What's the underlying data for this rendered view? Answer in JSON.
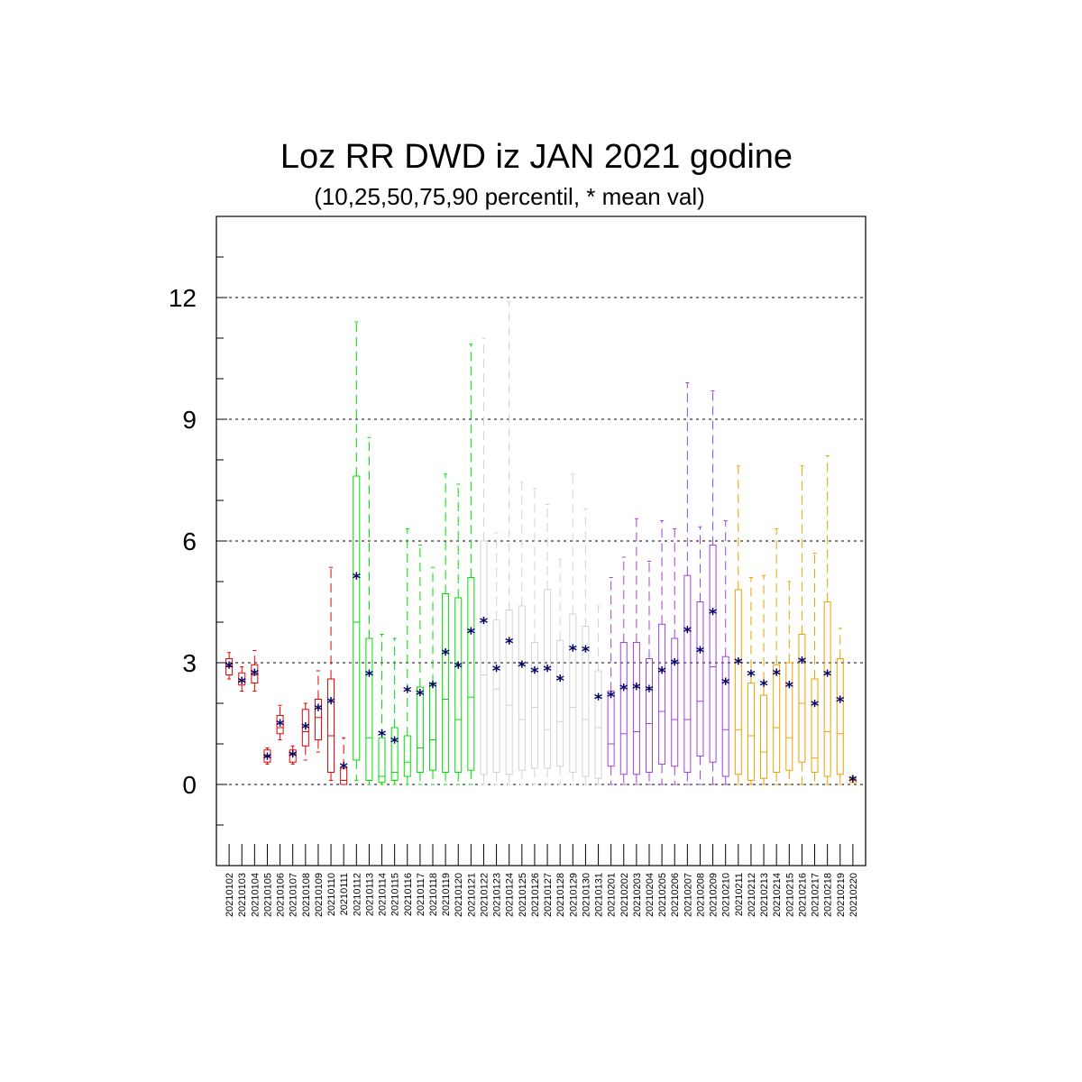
{
  "chart_data": {
    "type": "box",
    "title": "Loz RR DWD iz JAN 2021 godine",
    "subtitle": "(10,25,50,75,90 percentil, * mean val)",
    "xlabel": "",
    "ylabel": "",
    "ylim": [
      -2,
      14
    ],
    "yticks": [
      0,
      3,
      6,
      9,
      12
    ],
    "grid": "horizontal dashed at major ticks",
    "legend": "none",
    "mean_marker_color": "#000066",
    "categories": [
      "20210102",
      "20210103",
      "20210104",
      "20210105",
      "20210106",
      "20210107",
      "20210108",
      "20210109",
      "20210110",
      "20210111",
      "20210112",
      "20210113",
      "20210114",
      "20210115",
      "20210116",
      "20210117",
      "20210118",
      "20210119",
      "20210120",
      "20210121",
      "20210122",
      "20210123",
      "20210124",
      "20210125",
      "20210126",
      "20210127",
      "20210128",
      "20210129",
      "20210130",
      "20210131",
      "20210201",
      "20210202",
      "20210203",
      "20210204",
      "20210205",
      "20210206",
      "20210207",
      "20210208",
      "20210209",
      "20210210",
      "20210211",
      "20210212",
      "20210213",
      "20210214",
      "20210215",
      "20210216",
      "20210217",
      "20210218",
      "20210219",
      "20210220"
    ],
    "colors": [
      "#e60000",
      "#e60000",
      "#e60000",
      "#e60000",
      "#e60000",
      "#e60000",
      "#e60000",
      "#e60000",
      "#e60000",
      "#e60000",
      "#00dd00",
      "#00dd00",
      "#00dd00",
      "#00dd00",
      "#00dd00",
      "#00dd00",
      "#00dd00",
      "#00dd00",
      "#00dd00",
      "#00dd00",
      "#d3d3d3",
      "#d3d3d3",
      "#d3d3d3",
      "#d3d3d3",
      "#d3d3d3",
      "#d3d3d3",
      "#d3d3d3",
      "#d3d3d3",
      "#d3d3d3",
      "#d3d3d3",
      "#a040e0",
      "#a040e0",
      "#a040e0",
      "#a040e0",
      "#a040e0",
      "#a040e0",
      "#a040e0",
      "#a040e0",
      "#a040e0",
      "#a040e0",
      "#f0a000",
      "#f0a000",
      "#f0a000",
      "#f0a000",
      "#f0a000",
      "#f0a000",
      "#f0a000",
      "#f0a000",
      "#f0a000",
      "#f0a000"
    ],
    "p10": [
      2.6,
      2.3,
      2.3,
      0.5,
      1.1,
      0.5,
      0.6,
      0.8,
      0.1,
      0.0,
      0.1,
      0.0,
      0.0,
      0.0,
      0.0,
      0.0,
      0.0,
      0.0,
      0.0,
      0.0,
      0.0,
      0.0,
      0.0,
      0.0,
      0.0,
      0.0,
      0.0,
      0.0,
      0.0,
      0.0,
      0.0,
      0.0,
      0.0,
      0.0,
      0.0,
      0.0,
      0.0,
      0.0,
      0.0,
      0.0,
      0.0,
      0.0,
      0.0,
      0.0,
      0.0,
      0.0,
      0.0,
      0.0,
      0.0,
      0.05
    ],
    "p25": [
      2.7,
      2.45,
      2.5,
      0.55,
      1.25,
      0.55,
      0.95,
      1.1,
      0.3,
      0.0,
      0.6,
      0.1,
      0.05,
      0.1,
      0.2,
      0.3,
      0.35,
      0.3,
      0.3,
      0.35,
      0.25,
      0.3,
      0.25,
      0.35,
      0.4,
      0.4,
      0.45,
      0.3,
      0.2,
      0.15,
      0.45,
      0.25,
      0.25,
      0.3,
      0.5,
      0.45,
      0.3,
      0.7,
      0.55,
      0.2,
      0.25,
      0.1,
      0.15,
      0.3,
      0.35,
      0.55,
      0.3,
      0.2,
      0.25,
      0.05
    ],
    "p50": [
      2.9,
      2.55,
      2.7,
      0.7,
      1.4,
      0.75,
      1.3,
      1.65,
      1.2,
      0.1,
      4.0,
      1.15,
      0.2,
      0.3,
      0.55,
      0.9,
      1.1,
      2.1,
      1.6,
      2.15,
      2.7,
      2.35,
      1.95,
      1.6,
      1.9,
      1.35,
      1.55,
      1.9,
      1.6,
      1.4,
      1.0,
      1.25,
      1.3,
      1.5,
      1.8,
      1.6,
      1.6,
      2.05,
      2.9,
      1.35,
      1.35,
      1.2,
      0.8,
      1.4,
      1.15,
      2.0,
      0.65,
      1.3,
      1.25,
      0.1
    ],
    "p75": [
      3.1,
      2.75,
      2.95,
      0.85,
      1.7,
      0.85,
      1.85,
      2.1,
      2.6,
      0.4,
      7.6,
      3.6,
      1.15,
      1.4,
      1.2,
      2.4,
      2.5,
      4.7,
      4.6,
      5.1,
      6.0,
      4.05,
      4.3,
      4.4,
      3.5,
      4.8,
      3.55,
      4.2,
      3.9,
      2.8,
      2.3,
      3.5,
      3.5,
      3.1,
      3.95,
      3.6,
      5.15,
      4.5,
      5.9,
      3.15,
      4.8,
      2.5,
      2.2,
      2.95,
      3.0,
      3.7,
      2.6,
      4.5,
      3.1,
      0.15
    ],
    "p90": [
      3.25,
      2.9,
      3.3,
      0.9,
      1.95,
      0.95,
      2.0,
      2.8,
      5.35,
      1.15,
      11.4,
      8.55,
      3.7,
      3.6,
      6.3,
      5.9,
      5.35,
      7.65,
      7.4,
      10.85,
      11.0,
      6.2,
      11.9,
      7.45,
      7.3,
      6.9,
      5.55,
      7.65,
      6.8,
      4.4,
      5.1,
      5.6,
      6.55,
      5.5,
      6.5,
      6.3,
      9.9,
      6.35,
      9.7,
      6.5,
      7.85,
      5.1,
      5.15,
      6.3,
      5.0,
      7.85,
      5.7,
      8.1,
      3.85,
      0.2
    ],
    "mean": [
      2.92,
      2.55,
      2.75,
      0.68,
      1.5,
      0.73,
      1.42,
      1.88,
      2.05,
      0.45,
      5.12,
      2.72,
      1.25,
      1.08,
      2.32,
      2.25,
      2.45,
      3.25,
      2.92,
      3.77,
      4.02,
      2.85,
      3.52,
      2.95,
      2.8,
      2.85,
      2.6,
      3.35,
      3.32,
      2.15,
      2.2,
      2.38,
      2.4,
      2.35,
      2.8,
      3.0,
      3.8,
      3.3,
      4.25,
      2.52,
      3.02,
      2.72,
      2.48,
      2.75,
      2.45,
      3.05,
      1.98,
      2.72,
      2.08,
      0.12
    ]
  }
}
